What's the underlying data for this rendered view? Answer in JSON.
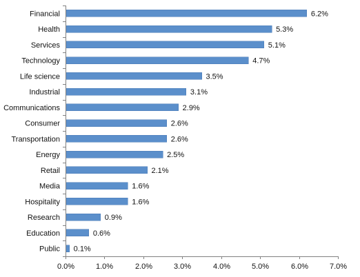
{
  "chart_data": {
    "type": "bar",
    "orientation": "horizontal",
    "categories": [
      "Financial",
      "Health",
      "Services",
      "Technology",
      "Life science",
      "Industrial",
      "Communications",
      "Consumer",
      "Transportation",
      "Energy",
      "Retail",
      "Media",
      "Hospitality",
      "Research",
      "Education",
      "Public"
    ],
    "values": [
      6.2,
      5.3,
      5.1,
      4.7,
      3.5,
      3.1,
      2.9,
      2.6,
      2.6,
      2.5,
      2.1,
      1.6,
      1.6,
      0.9,
      0.6,
      0.1
    ],
    "value_labels": [
      "6.2%",
      "5.3%",
      "5.1%",
      "4.7%",
      "3.5%",
      "3.1%",
      "2.9%",
      "2.6%",
      "2.6%",
      "2.5%",
      "2.1%",
      "1.6%",
      "1.6%",
      "0.9%",
      "0.6%",
      "0.1%"
    ],
    "x_ticks": [
      "0.0%",
      "1.0%",
      "2.0%",
      "3.0%",
      "4.0%",
      "5.0%",
      "6.0%",
      "7.0%"
    ],
    "xlim": [
      0,
      7
    ],
    "title": "",
    "xlabel": "",
    "ylabel": "",
    "grid": false,
    "legend": "none",
    "colors": {
      "bar_fill": "#5b8fcb",
      "bar_stroke": "#4a7ab4",
      "axis": "#808080",
      "text": "#111111"
    }
  }
}
